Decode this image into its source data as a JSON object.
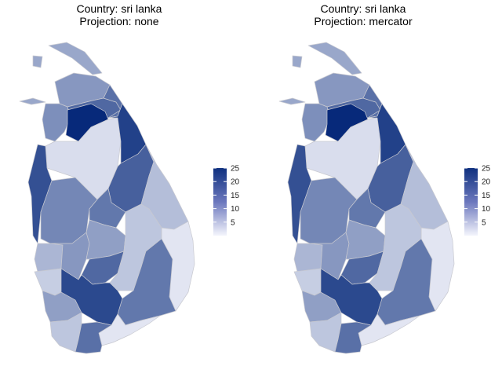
{
  "panels": [
    {
      "title_line1": "Country: sri lanka",
      "title_line2": "Projection: none",
      "legend": {
        "ticks": [
          "25",
          "20",
          "15",
          "10",
          "5"
        ],
        "tick_values": [
          25,
          20,
          15,
          10,
          5
        ],
        "min": 0,
        "max": 25
      }
    },
    {
      "title_line1": "Country: sri lanka",
      "title_line2": "Projection: mercator",
      "legend": {
        "ticks": [
          "25",
          "20",
          "15",
          "10",
          "5"
        ],
        "tick_values": [
          25,
          20,
          15,
          10,
          5
        ],
        "min": 0,
        "max": 25
      }
    }
  ],
  "colors": {
    "low": "#f4f5fc",
    "high": "#10317f",
    "border": "#c8c9d0",
    "background": "#ffffff"
  },
  "chart_data": {
    "type": "choropleth",
    "country": "sri lanka",
    "projections": [
      "none",
      "mercator"
    ],
    "scale_range": [
      0,
      25
    ],
    "regions": [
      {
        "id": "islands",
        "value": 10
      },
      {
        "id": "jaffna",
        "value": 12
      },
      {
        "id": "kilinochchi",
        "value": 18
      },
      {
        "id": "mullaitivu",
        "value": 17
      },
      {
        "id": "mannar",
        "value": 13
      },
      {
        "id": "vavuniya",
        "value": 26
      },
      {
        "id": "anuradhapura",
        "value": 3
      },
      {
        "id": "trincomalee",
        "value": 23
      },
      {
        "id": "puttalam",
        "value": 21
      },
      {
        "id": "kurunegala",
        "value": 14
      },
      {
        "id": "polonnaruwa",
        "value": 19
      },
      {
        "id": "matale",
        "value": 16
      },
      {
        "id": "batticaloa",
        "value": 7
      },
      {
        "id": "ampara",
        "value": 2
      },
      {
        "id": "gampaha",
        "value": 8
      },
      {
        "id": "kegalle",
        "value": 12
      },
      {
        "id": "kandy",
        "value": 11
      },
      {
        "id": "nuwara-eliya",
        "value": 18
      },
      {
        "id": "badulla",
        "value": 6
      },
      {
        "id": "colombo",
        "value": 5
      },
      {
        "id": "monaragala",
        "value": 16
      },
      {
        "id": "kalutara",
        "value": 11
      },
      {
        "id": "ratnapura",
        "value": 22
      },
      {
        "id": "galle",
        "value": 6
      },
      {
        "id": "hambantota",
        "value": 2
      },
      {
        "id": "matara",
        "value": 17
      }
    ]
  }
}
